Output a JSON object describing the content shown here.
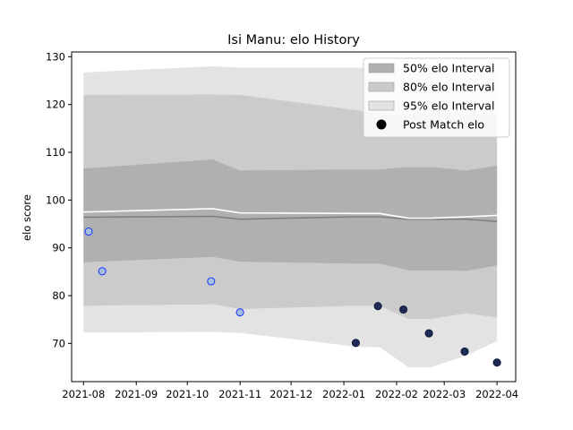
{
  "chart_data": {
    "type": "area",
    "title": "Isi Manu: elo History",
    "xlabel": "",
    "ylabel": "elo score",
    "ylim": [
      62,
      131
    ],
    "xlim": [
      "2021-07-25",
      "2022-04-12"
    ],
    "yticks": [
      70,
      80,
      90,
      100,
      110,
      120,
      130
    ],
    "xticks": [
      "2021-08",
      "2021-09",
      "2021-10",
      "2021-11",
      "2021-12",
      "2022-01",
      "2022-02",
      "2022-03",
      "2022-04"
    ],
    "grid": false,
    "legend_position": "top-right",
    "band_dates": [
      "2021-08-01",
      "2021-10-16",
      "2021-11-01",
      "2022-01-09",
      "2022-01-22",
      "2022-02-08",
      "2022-02-21",
      "2022-03-14",
      "2022-04-01"
    ],
    "bands": [
      {
        "name": "95% elo Interval",
        "color": "#e3e3e3",
        "lower": [
          72.3,
          72.4,
          72.2,
          69.3,
          69.2,
          65.0,
          65.0,
          67.5,
          70.5
        ],
        "upper": [
          126.7,
          128.0,
          127.7,
          127.7,
          127.6,
          127.8,
          127.6,
          127.5,
          127.6
        ]
      },
      {
        "name": "80% elo Interval",
        "color": "#cbcbcb",
        "lower": [
          77.9,
          78.2,
          77.2,
          77.9,
          77.9,
          75.1,
          75.1,
          76.3,
          75.4
        ],
        "upper": [
          122.0,
          122.1,
          122.0,
          118.8,
          118.0,
          118.0,
          118.0,
          117.9,
          118.0
        ]
      },
      {
        "name": "50% elo Interval",
        "color": "#b0b0b0",
        "lower": [
          87.0,
          88.1,
          87.1,
          86.7,
          86.7,
          85.3,
          85.3,
          85.2,
          86.3
        ],
        "upper": [
          106.6,
          108.5,
          106.2,
          106.4,
          106.4,
          106.9,
          106.9,
          106.2,
          107.2
        ]
      }
    ],
    "lines": [
      {
        "name": "median",
        "color": "#808080",
        "y": [
          96.4,
          96.6,
          96.0,
          96.5,
          96.5,
          96.0,
          96.0,
          96.0,
          95.5
        ]
      },
      {
        "name": "mean",
        "color": "#ffffff",
        "y": [
          97.5,
          98.2,
          97.3,
          97.2,
          97.2,
          96.2,
          96.2,
          96.5,
          96.8
        ]
      }
    ],
    "series": [
      {
        "name": "Post Match elo",
        "points": [
          {
            "x": "2021-08-04",
            "y": 93.4,
            "edge": "#1f3dff",
            "fill": "#a7c0df"
          },
          {
            "x": "2021-08-12",
            "y": 85.1,
            "edge": "#1f3dff",
            "fill": "#a7c0df"
          },
          {
            "x": "2021-10-15",
            "y": 83.0,
            "edge": "#1f3dff",
            "fill": "#a7c0df"
          },
          {
            "x": "2021-11-01",
            "y": 76.5,
            "edge": "#1f3dff",
            "fill": "#a7c0df"
          },
          {
            "x": "2022-01-08",
            "y": 70.1,
            "edge": "#0d1b3e",
            "fill": "#1f2c57"
          },
          {
            "x": "2022-01-21",
            "y": 77.8,
            "edge": "#0d1b3e",
            "fill": "#1f2c57"
          },
          {
            "x": "2022-02-05",
            "y": 77.1,
            "edge": "#0d1b3e",
            "fill": "#1f2c57"
          },
          {
            "x": "2022-02-20",
            "y": 72.1,
            "edge": "#0d1b3e",
            "fill": "#1f2c57"
          },
          {
            "x": "2022-03-13",
            "y": 68.3,
            "edge": "#0d1b3e",
            "fill": "#1f2c57"
          },
          {
            "x": "2022-04-01",
            "y": 66.0,
            "edge": "#0d1b3e",
            "fill": "#1f2c57"
          }
        ]
      }
    ],
    "legend": [
      {
        "label": "50% elo Interval",
        "kind": "patch",
        "color": "#b0b0b0"
      },
      {
        "label": "80% elo Interval",
        "kind": "patch",
        "color": "#cbcbcb"
      },
      {
        "label": "95% elo Interval",
        "kind": "patch",
        "color": "#e3e3e3"
      },
      {
        "label": "Post Match elo",
        "kind": "marker",
        "color": "#000000"
      }
    ]
  }
}
